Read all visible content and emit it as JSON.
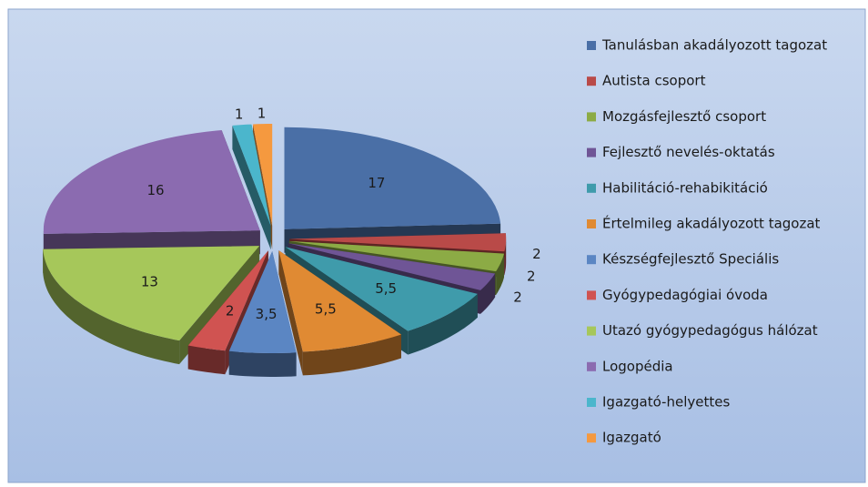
{
  "chart_data": {
    "type": "pie",
    "categories": [
      "Tanulásban akadályozott tagozat",
      "Autista csoport",
      "Mozgásfejlesztő csoport",
      "Fejlesztő nevelés-oktatás",
      "Habilitáció-rehabikitáció",
      "Értelmileg akadályozott tagozat",
      "Készségfejlesztő Speciális",
      "Gyógypedagógiai óvoda",
      "Utazó gyógypedagógus hálózat",
      "Logopédia",
      "Igazgató-helyettes",
      "Igazgató"
    ],
    "values": [
      17,
      2,
      2,
      2,
      5.5,
      5.5,
      3.5,
      2,
      13,
      16,
      1,
      1
    ],
    "value_labels": [
      "17",
      "2",
      "2",
      "2",
      "5,5",
      "5,5",
      "3,5",
      "2",
      "13",
      "16",
      "1",
      "1"
    ],
    "colors": [
      "#4a6fa6",
      "#b94a48",
      "#8cab45",
      "#6f5596",
      "#3f9bab",
      "#e08a33",
      "#5b86c3",
      "#d05351",
      "#a6c75a",
      "#8b6bb0",
      "#4bb6cc",
      "#f5993f"
    ],
    "legend": "right"
  }
}
